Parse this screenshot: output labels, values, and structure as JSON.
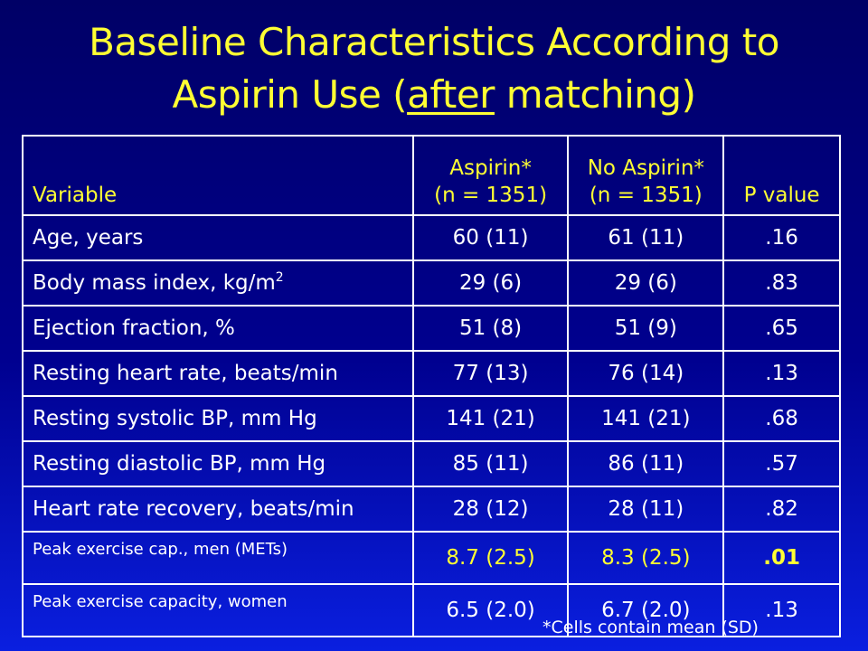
{
  "title": {
    "line1": "Baseline Characteristics According to",
    "line2_before": "Aspirin Use (",
    "line2_underlined": "after",
    "line2_after": " matching)"
  },
  "table": {
    "headers": {
      "variable": "Variable",
      "aspirin_line1": "Aspirin*",
      "aspirin_line2": "(n = 1351)",
      "no_aspirin_line1": "No Aspirin*",
      "no_aspirin_line2": "(n = 1351)",
      "pvalue": "P value"
    },
    "rows": [
      {
        "label": "Age, years",
        "aspirin": "60 (11)",
        "no_aspirin": "61 (11)",
        "p": ".16"
      },
      {
        "label": "Body mass index, kg/m",
        "sup": "2",
        "aspirin": "29 (6)",
        "no_aspirin": "29 (6)",
        "p": ".83"
      },
      {
        "label": "Ejection fraction, %",
        "aspirin": "51 (8)",
        "no_aspirin": "51 (9)",
        "p": ".65"
      },
      {
        "label": "Resting heart rate, beats/min",
        "aspirin": "77 (13)",
        "no_aspirin": "76 (14)",
        "p": ".13"
      },
      {
        "label": "Resting systolic BP, mm Hg",
        "aspirin": "141 (21)",
        "no_aspirin": "141 (21)",
        "p": ".68"
      },
      {
        "label": "Resting diastolic BP, mm Hg",
        "aspirin": "85 (11)",
        "no_aspirin": "86 (11)",
        "p": ".57"
      },
      {
        "label": "Heart rate recovery, beats/min",
        "aspirin": "28 (12)",
        "no_aspirin": "28 (11)",
        "p": ".82"
      },
      {
        "label": "Peak exercise cap., men (METs)",
        "aspirin": "8.7 (2.5)",
        "no_aspirin": "8.3 (2.5)",
        "p": ".01"
      },
      {
        "label": "Peak exercise capacity, women",
        "aspirin": "6.5 (2.0)",
        "no_aspirin": "6.7 (2.0)",
        "p": ".13"
      }
    ]
  },
  "footnote": "*Cells contain mean (SD)",
  "colors": {
    "title": "#ffff33",
    "text": "#ffffff",
    "highlight": "#ffff33"
  }
}
